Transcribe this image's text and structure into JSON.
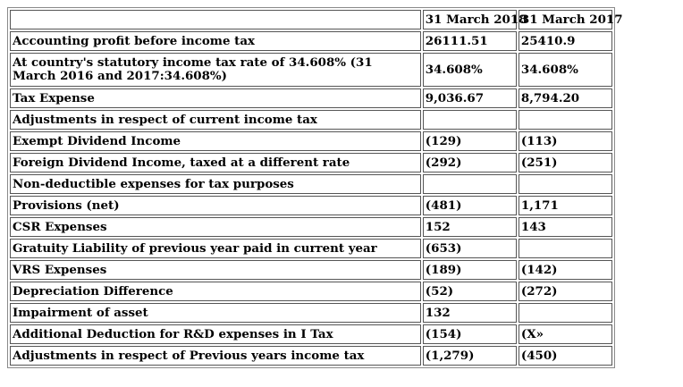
{
  "columns": [
    "",
    "31 March 2018",
    "31 March 2017"
  ],
  "rows": [
    {
      "label": "Accounting profit before income tax",
      "v2018": "26111.51",
      "v2017": "25410.9"
    },
    {
      "label": "At country's statutory income tax rate of 34.608% (31 March 2016 and 2017:34.608%)",
      "v2018": "34.608%",
      "v2017": "34.608%"
    },
    {
      "label": "Tax Expense",
      "v2018": "9,036.67",
      "v2017": "8,794.20"
    },
    {
      "label": "Adjustments in respect of current income tax",
      "v2018": "",
      "v2017": ""
    },
    {
      "label": "Exempt Dividend Income",
      "v2018": "(129)",
      "v2017": "(113)"
    },
    {
      "label": "Foreign Dividend Income, taxed at a different rate",
      "v2018": "(292)",
      "v2017": "(251)"
    },
    {
      "label": "Non-deductible expenses for tax purposes",
      "v2018": "",
      "v2017": ""
    },
    {
      "label": "Provisions (net)",
      "v2018": "(481)",
      "v2017": "1,171"
    },
    {
      "label": "CSR Expenses",
      "v2018": "152",
      "v2017": "143"
    },
    {
      "label": "Gratuity Liability of previous year paid in current year",
      "v2018": "(653)",
      "v2017": ""
    },
    {
      "label": "VRS Expenses",
      "v2018": "(189)",
      "v2017": "(142)"
    },
    {
      "label": "Depreciation Difference",
      "v2018": "(52)",
      "v2017": "(272)"
    },
    {
      "label": "Impairment of asset",
      "v2018": "132",
      "v2017": ""
    },
    {
      "label": "Additional Deduction for R&D expenses in I Tax",
      "v2018": "(154)",
      "v2017": "(X»"
    },
    {
      "label": "Adjustments in respect of Previous years income tax",
      "v2018": "(1,279)",
      "v2017": "(450)"
    }
  ]
}
